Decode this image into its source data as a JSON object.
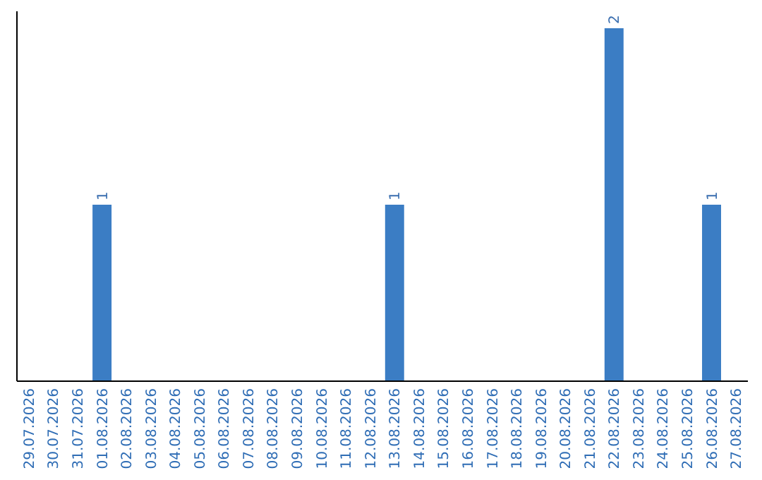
{
  "chart_data": {
    "type": "bar",
    "color": "#3b7dc4",
    "categories": [
      "29.07.2026",
      "30.07.2026",
      "31.07.2026",
      "01.08.2026",
      "02.08.2026",
      "03.08.2026",
      "04.08.2026",
      "05.08.2026",
      "06.08.2026",
      "07.08.2026",
      "08.08.2026",
      "09.08.2026",
      "10.08.2026",
      "11.08.2026",
      "12.08.2026",
      "13.08.2026",
      "14.08.2026",
      "15.08.2026",
      "16.08.2026",
      "17.08.2026",
      "18.08.2026",
      "19.08.2026",
      "20.08.2026",
      "21.08.2026",
      "22.08.2026",
      "23.08.2026",
      "24.08.2026",
      "25.08.2026",
      "26.08.2026",
      "27.08.2026"
    ],
    "values": [
      0,
      0,
      0,
      1,
      0,
      0,
      0,
      0,
      0,
      0,
      0,
      0,
      0,
      0,
      0,
      1,
      0,
      0,
      0,
      0,
      0,
      0,
      0,
      0,
      2,
      0,
      0,
      0,
      1,
      0
    ],
    "value_labels": [
      null,
      null,
      null,
      "1",
      null,
      null,
      null,
      null,
      null,
      null,
      null,
      null,
      null,
      null,
      null,
      "1",
      null,
      null,
      null,
      null,
      null,
      null,
      null,
      null,
      "2",
      null,
      null,
      null,
      "1",
      null
    ]
  }
}
